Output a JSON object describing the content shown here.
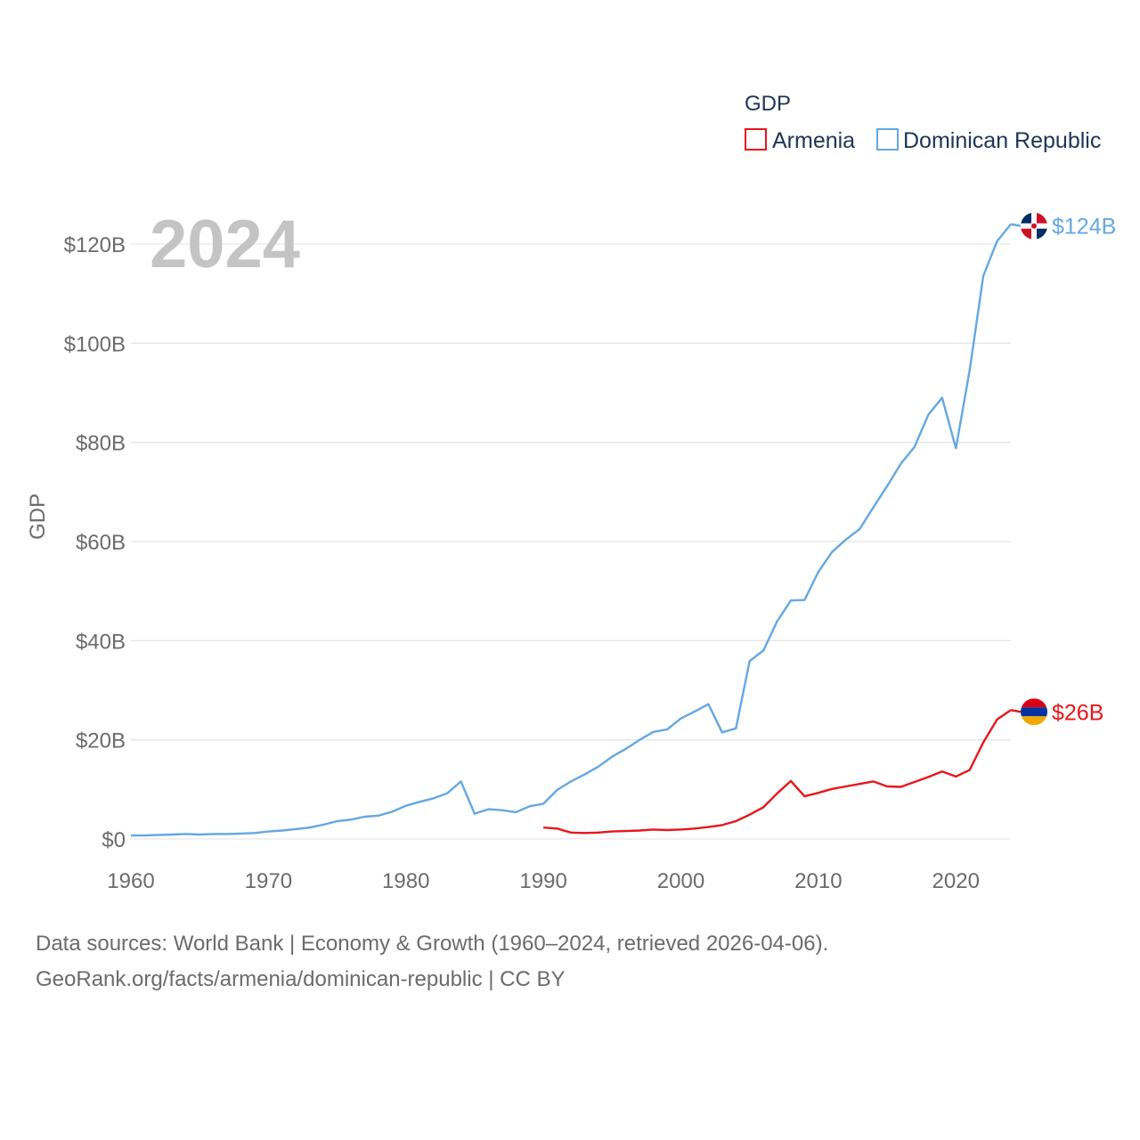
{
  "chart_data": {
    "type": "line",
    "title": "GDP",
    "year_label": "2024",
    "ylabel": "GDP",
    "xlabel": "",
    "xlim": [
      1960,
      2024
    ],
    "ylim": [
      0,
      130
    ],
    "x_ticks": [
      1960,
      1970,
      1980,
      1990,
      2000,
      2010,
      2020
    ],
    "x_tick_labels": [
      "1960",
      "1970",
      "1980",
      "1990",
      "2000",
      "2010",
      "2020"
    ],
    "y_ticks": [
      0,
      20,
      40,
      60,
      80,
      100,
      120
    ],
    "y_tick_labels": [
      "$0",
      "$20B",
      "$40B",
      "$60B",
      "$80B",
      "$100B",
      "$120B"
    ],
    "grid": true,
    "legend_position": "top-right",
    "series": [
      {
        "name": "Armenia",
        "color": "#e8161b",
        "end_label": "$26B",
        "flag_icon": "armenia-flag-icon",
        "flag_colors": [
          "#d90012",
          "#0033a0",
          "#f2a800"
        ],
        "x": [
          1990,
          1991,
          1992,
          1993,
          1994,
          1995,
          1996,
          1997,
          1998,
          1999,
          2000,
          2001,
          2002,
          2003,
          2004,
          2005,
          2006,
          2007,
          2008,
          2009,
          2010,
          2011,
          2012,
          2013,
          2014,
          2015,
          2016,
          2017,
          2018,
          2019,
          2020,
          2021,
          2022,
          2023,
          2024
        ],
        "values": [
          2.3,
          2.1,
          1.3,
          1.2,
          1.3,
          1.5,
          1.6,
          1.7,
          1.9,
          1.8,
          1.9,
          2.1,
          2.4,
          2.8,
          3.6,
          4.9,
          6.4,
          9.2,
          11.7,
          8.6,
          9.3,
          10.1,
          10.6,
          11.1,
          11.6,
          10.6,
          10.5,
          11.5,
          12.5,
          13.6,
          12.6,
          13.9,
          19.5,
          24.1,
          26.0
        ]
      },
      {
        "name": "Dominican Republic",
        "color": "#64a7e3",
        "end_label": "$124B",
        "flag_icon": "dominican-republic-flag-icon",
        "flag_colors": [
          "#002d62",
          "#ce1126",
          "#ffffff"
        ],
        "x": [
          1960,
          1961,
          1962,
          1963,
          1964,
          1965,
          1966,
          1967,
          1968,
          1969,
          1970,
          1971,
          1972,
          1973,
          1974,
          1975,
          1976,
          1977,
          1978,
          1979,
          1980,
          1981,
          1982,
          1983,
          1984,
          1985,
          1986,
          1987,
          1988,
          1989,
          1990,
          1991,
          1992,
          1993,
          1994,
          1995,
          1996,
          1997,
          1998,
          1999,
          2000,
          2001,
          2002,
          2003,
          2004,
          2005,
          2006,
          2007,
          2008,
          2009,
          2010,
          2011,
          2012,
          2013,
          2014,
          2015,
          2016,
          2017,
          2018,
          2019,
          2020,
          2021,
          2022,
          2023,
          2024
        ],
        "values": [
          0.7,
          0.7,
          0.8,
          0.9,
          1.0,
          0.9,
          1.0,
          1.0,
          1.1,
          1.2,
          1.5,
          1.7,
          2.0,
          2.3,
          2.9,
          3.6,
          3.9,
          4.5,
          4.7,
          5.5,
          6.7,
          7.5,
          8.2,
          9.2,
          11.6,
          5.1,
          6.0,
          5.8,
          5.4,
          6.6,
          7.1,
          9.9,
          11.6,
          13.0,
          14.6,
          16.6,
          18.2,
          20.0,
          21.6,
          22.1,
          24.3,
          25.7,
          27.2,
          21.5,
          22.3,
          35.9,
          38.0,
          43.9,
          48.1,
          48.2,
          53.9,
          57.9,
          60.4,
          62.5,
          66.9,
          71.2,
          75.7,
          79.1,
          85.6,
          89.0,
          78.8,
          94.5,
          113.6,
          120.6,
          124.0
        ]
      }
    ]
  },
  "source": {
    "line1": "Data sources: World Bank | Economy & Growth (1960–2024, retrieved 2026-04-06).",
    "line2": "GeoRank.org/facts/armenia/dominican-republic | CC BY"
  }
}
